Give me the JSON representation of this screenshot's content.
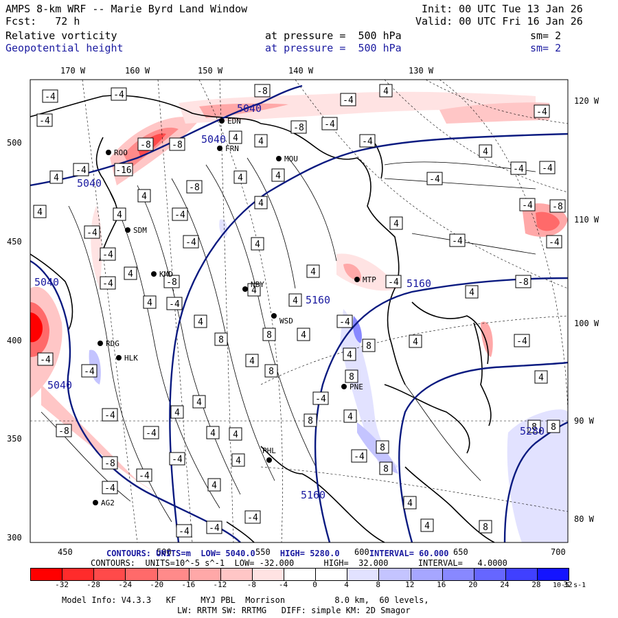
{
  "header": {
    "title": "AMPS 8-km WRF -- Marie Byrd Land Window",
    "forecast": "Fcst:   72 h",
    "init": "Init: 00 UTC Tue 13 Jan 26",
    "valid": "Valid: 00 UTC Fri 16 Jan 26",
    "field1": {
      "name": "Relative vorticity",
      "level": "at pressure =  500 hPa",
      "sm": "sm= 2"
    },
    "field2": {
      "name": "Geopotential height",
      "level": "at pressure =  500 hPa",
      "sm": "sm= 2"
    }
  },
  "axes": {
    "top_lon_labels": [
      "170 W",
      "160 W",
      "150 W",
      "140 W",
      "130 W"
    ],
    "right_lon_labels": [
      "120 W",
      "110 W",
      "100 W",
      "90 W",
      "80 W"
    ],
    "left_ticks": [
      "500",
      "450",
      "400",
      "350",
      "300"
    ],
    "bottom_ticks": [
      "450",
      "500",
      "550",
      "600",
      "650",
      "700"
    ]
  },
  "stations": [
    {
      "id": "ROO"
    },
    {
      "id": "EDN"
    },
    {
      "id": "FRN"
    },
    {
      "id": "MOU"
    },
    {
      "id": "SDM"
    },
    {
      "id": "KMD"
    },
    {
      "id": "NBY"
    },
    {
      "id": "WSD"
    },
    {
      "id": "MTP"
    },
    {
      "id": "RDG"
    },
    {
      "id": "HLK"
    },
    {
      "id": "PNE"
    },
    {
      "id": "PHL"
    },
    {
      "id": "AG2"
    }
  ],
  "height_labels": [
    "5040",
    "5040",
    "5040",
    "5040",
    "5160",
    "5160",
    "5160",
    "5280"
  ],
  "vorticity_labels": [
    "-4",
    "-8",
    "-16",
    "4",
    "8"
  ],
  "contours_info": {
    "height_line": "CONTOURS: UNITS=m  LOW= 5040.0     HIGH= 5280.0      INTERVAL= 60.000",
    "vort_line": "CONTOURS:  UNITS=10^-5 s^-1  LOW= -32.000      HIGH=  32.000      INTERVAL=   4.0000"
  },
  "colorbar": {
    "labels": [
      "-32",
      "-28",
      "-24",
      "-20",
      "-16",
      "-12",
      "-8",
      "-4",
      "0",
      "4",
      "8",
      "12",
      "16",
      "20",
      "24",
      "28",
      "32"
    ],
    "unit": "10-5 s-1",
    "colors": [
      "#ff0000",
      "#ff2b2b",
      "#ff4a4a",
      "#ff6a6a",
      "#ff8a8a",
      "#ffa8a8",
      "#ffc6c6",
      "#ffe3e3",
      "#ffffff",
      "#ffffff",
      "#e2e2ff",
      "#c4c4ff",
      "#a6a6ff",
      "#8888ff",
      "#6666ff",
      "#4040ff",
      "#1414ff"
    ]
  },
  "footer": {
    "line1": "Model Info: V4.3.3   KF     MYJ PBL  Morrison          8.0 km,  60 levels,",
    "line2": "LW: RRTM SW: RRTMG   DIFF: simple KM: 2D Smagor"
  }
}
